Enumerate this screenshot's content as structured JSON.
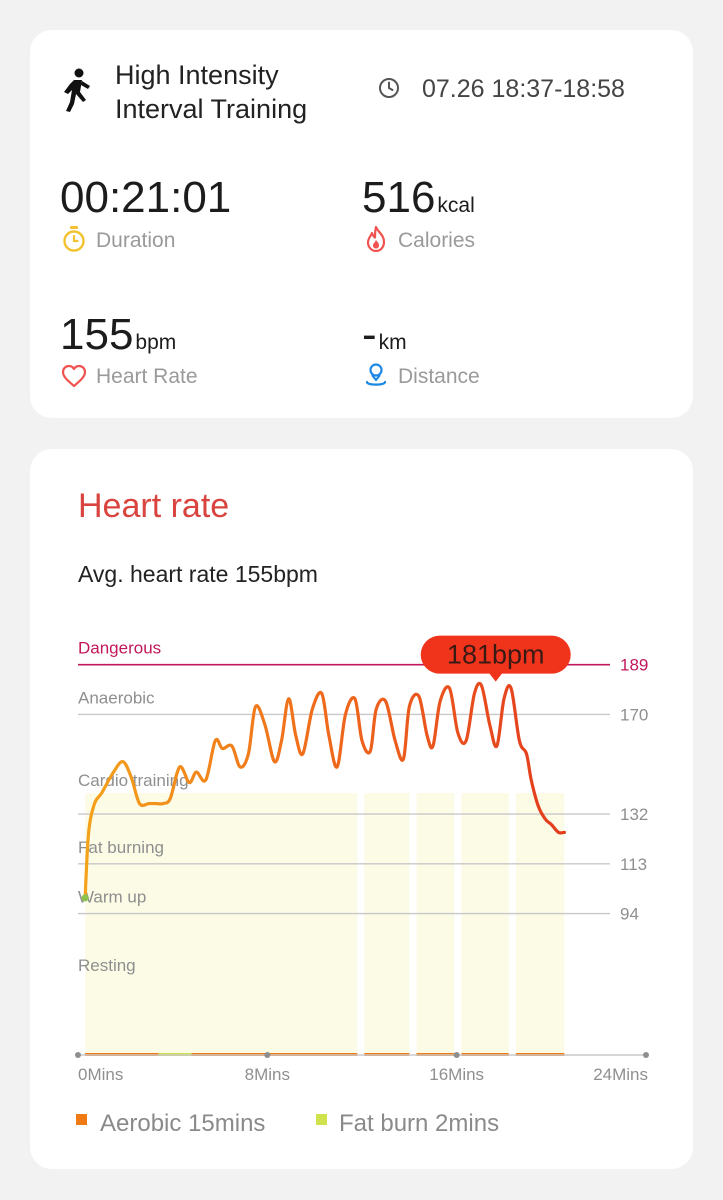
{
  "workout": {
    "title_line1": "High Intensity",
    "title_line2": "Interval Training",
    "time_range": "07.26 18:37-18:58"
  },
  "metrics": {
    "duration": {
      "value": "00:21:01",
      "label": "Duration"
    },
    "calories": {
      "value": "516",
      "unit": "kcal",
      "label": "Calories"
    },
    "heart_rate": {
      "value": "155",
      "unit": "bpm",
      "label": "Heart Rate"
    },
    "distance": {
      "value": "-",
      "unit": "km",
      "label": "Distance"
    }
  },
  "heart_rate_section": {
    "title": "Heart rate",
    "avg_text": "Avg. heart rate 155bpm",
    "peak_label": "181bpm",
    "legend": [
      {
        "label": "Aerobic 15mins",
        "color": "#f07b14"
      },
      {
        "label": "Fat burn 2mins",
        "color": "#cfe24c"
      }
    ]
  },
  "icons": {
    "sport": "running-figure-icon",
    "clock": "clock-icon",
    "duration": "stopwatch-icon",
    "calories": "flame-icon",
    "heart_rate": "heart-icon",
    "distance": "location-pin-icon"
  },
  "colors": {
    "accent_red": "#d9443f",
    "dangerous_line": "#c2185b",
    "duration_icon": "#f2c230",
    "calories_icon": "#ef5350",
    "heart_icon": "#ef5350",
    "distance_icon": "#1e88e5"
  },
  "chart_data": {
    "type": "line",
    "xlabel": "",
    "ylabel": "",
    "x_ticks": [
      "0Mins",
      "8Mins",
      "16Mins",
      "24Mins"
    ],
    "xlim": [
      0,
      24
    ],
    "ylim": [
      40,
      195
    ],
    "zones": [
      {
        "name": "Dangerous",
        "threshold": 189
      },
      {
        "name": "Anaerobic",
        "threshold": 170
      },
      {
        "name": "Cardio training",
        "threshold": 132
      },
      {
        "name": "Fat burning",
        "threshold": 113
      },
      {
        "name": "Warm up",
        "threshold": 94
      },
      {
        "name": "Resting",
        "threshold": null
      }
    ],
    "y_ticks": [
      189,
      170,
      132,
      113,
      94
    ],
    "peak": {
      "x": 17.65,
      "y": 181,
      "label": "181bpm"
    },
    "series": [
      {
        "name": "",
        "x": [
          0.3,
          0.45,
          0.7,
          1.0,
          1.5,
          1.9,
          2.25,
          2.6,
          3.0,
          3.3,
          3.6,
          3.9,
          4.3,
          4.7,
          5.0,
          5.4,
          5.8,
          6.1,
          6.5,
          6.85,
          7.2,
          7.5,
          7.9,
          8.3,
          8.6,
          8.9,
          9.2,
          9.5,
          9.9,
          10.3,
          10.6,
          10.95,
          11.3,
          11.7,
          12.0,
          12.35,
          12.6,
          13.0,
          13.4,
          13.75,
          14.0,
          14.4,
          14.75,
          15.0,
          15.3,
          15.7,
          16.05,
          16.4,
          16.75,
          17.05,
          17.4,
          17.7,
          18.0,
          18.3,
          18.65,
          18.95,
          19.15,
          19.45,
          19.75,
          20.0,
          20.3,
          20.55
        ],
        "y": [
          100,
          125,
          136,
          140,
          148,
          152,
          146,
          136,
          136,
          136,
          136,
          138,
          150,
          144,
          148,
          145,
          160,
          157,
          158,
          150,
          155,
          173,
          166,
          152,
          160,
          176,
          162,
          155,
          172,
          178,
          162,
          150,
          170,
          176,
          160,
          156,
          172,
          175,
          160,
          153,
          173,
          177,
          162,
          158,
          175,
          180,
          163,
          160,
          178,
          181,
          166,
          158,
          176,
          180,
          160,
          155,
          145,
          135,
          130,
          128,
          125,
          125
        ]
      }
    ],
    "zone_bands": [
      {
        "zone": "Aerobic",
        "start": 0.3,
        "end": 11.8
      },
      {
        "zone": "Aerobic",
        "start": 12.1,
        "end": 14.0
      },
      {
        "zone": "Aerobic",
        "start": 14.3,
        "end": 15.9
      },
      {
        "zone": "Aerobic",
        "start": 16.2,
        "end": 18.2
      },
      {
        "zone": "Aerobic",
        "start": 18.5,
        "end": 20.55
      }
    ]
  }
}
